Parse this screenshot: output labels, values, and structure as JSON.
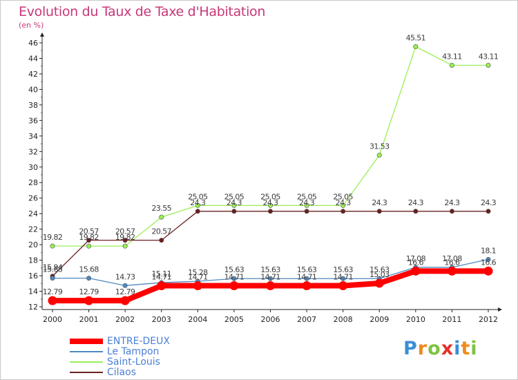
{
  "chart_data": {
    "type": "line",
    "title": "Evolution du Taux de Taxe d'Habitation",
    "subtitle": "(en %)",
    "xlabel": "",
    "ylabel": "",
    "categories": [
      "2000",
      "2001",
      "2002",
      "2003",
      "2004",
      "2005",
      "2006",
      "2007",
      "2008",
      "2009",
      "2010",
      "2011",
      "2012"
    ],
    "ylim": [
      12,
      46
    ],
    "yticks": [
      12,
      14,
      16,
      18,
      20,
      22,
      24,
      26,
      28,
      30,
      32,
      34,
      36,
      38,
      40,
      42,
      44,
      46
    ],
    "grid": false,
    "legend_position": "bottom-left",
    "series": [
      {
        "name": "ENTRE-DEUX",
        "color": "#ff0000",
        "values": [
          12.79,
          12.79,
          12.79,
          14.71,
          14.71,
          14.71,
          14.71,
          14.71,
          14.71,
          15.03,
          16.6,
          16.6,
          16.6
        ],
        "labels": [
          "12.79",
          "12.79",
          "12.79",
          "14.71",
          "14.71",
          "14.71",
          "14.71",
          "14.71",
          "14.71",
          "15.03",
          "16.6",
          "16.6",
          "16.6"
        ]
      },
      {
        "name": "Le Tampon",
        "color": "#4f88c0",
        "values": [
          15.68,
          15.68,
          14.73,
          15.11,
          15.28,
          15.63,
          15.63,
          15.63,
          15.63,
          15.63,
          17.08,
          17.08,
          18.1
        ],
        "labels": [
          "15.68",
          "15.68",
          "14.73",
          "15.11",
          "15.28",
          "15.63",
          "15.63",
          "15.63",
          "15.63",
          "15.63",
          "17.08",
          "17.08",
          "18.1"
        ]
      },
      {
        "name": "Saint-Louis",
        "color": "#99ee55",
        "values": [
          19.82,
          19.82,
          19.82,
          23.55,
          25.05,
          25.05,
          25.05,
          25.05,
          25.05,
          31.53,
          45.51,
          43.11,
          43.11
        ],
        "labels": [
          "19.82",
          "19.82",
          "19.82",
          "23.55",
          "25.05",
          "25.05",
          "25.05",
          "25.05",
          "25.05",
          "31.53",
          "45.51",
          "43.11",
          "43.11"
        ]
      },
      {
        "name": "Cilaos",
        "color": "#6b1f1f",
        "values": [
          15.94,
          20.57,
          20.57,
          20.57,
          24.3,
          24.3,
          24.3,
          24.3,
          24.3,
          24.3,
          24.3,
          24.3,
          24.3
        ],
        "labels": [
          "15.94",
          "20.57",
          "20.57",
          "20.57",
          "24.3",
          "24.3",
          "24.3",
          "24.3",
          "24.3",
          "24.3",
          "24.3",
          "24.3",
          "24.3"
        ]
      }
    ]
  },
  "logo": {
    "letters": [
      "P",
      "r",
      "o",
      "x",
      "i",
      "t",
      "i"
    ],
    "colors": [
      "#3a8fd6",
      "#f08a1a",
      "#7fc241",
      "#e3322b",
      "#3a8fd6",
      "#f08a1a",
      "#7fc241"
    ]
  }
}
